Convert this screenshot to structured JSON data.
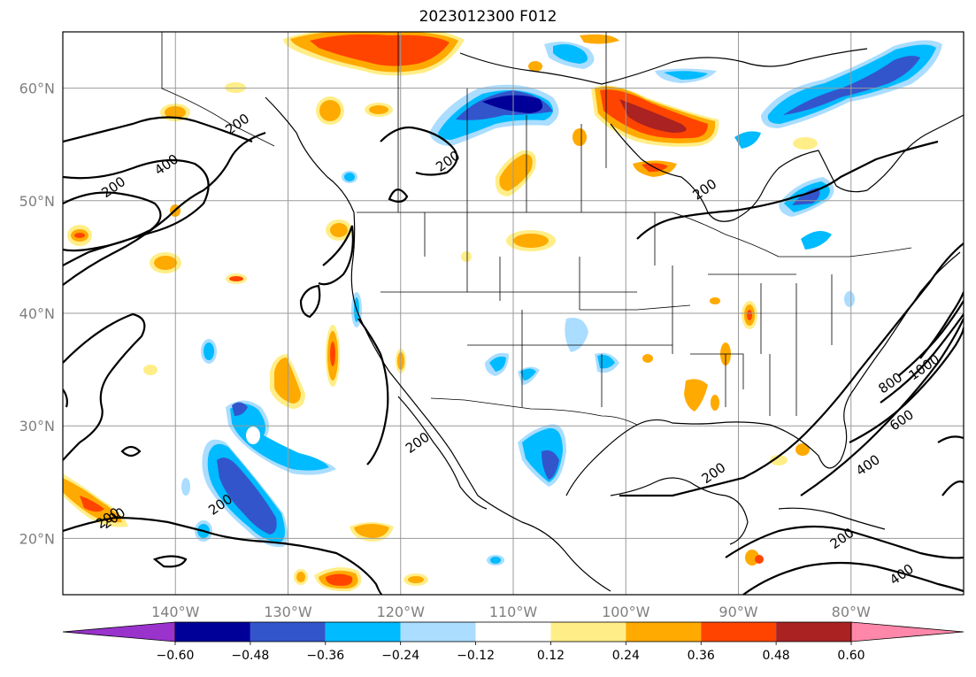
{
  "title": "2023012300 F012",
  "map": {
    "projection": "lat-lon",
    "lon_range": [
      -150,
      -70
    ],
    "lat_range": [
      15,
      65
    ],
    "lon_ticks": [
      {
        "value": -140,
        "label": "140°W"
      },
      {
        "value": -130,
        "label": "130°W"
      },
      {
        "value": -120,
        "label": "120°W"
      },
      {
        "value": -110,
        "label": "110°W"
      },
      {
        "value": -100,
        "label": "100°W"
      },
      {
        "value": -90,
        "label": "90°W"
      },
      {
        "value": -80,
        "label": "80°W"
      }
    ],
    "lat_ticks": [
      {
        "value": 20,
        "label": "20°N"
      },
      {
        "value": 30,
        "label": "30°N"
      },
      {
        "value": 40,
        "label": "40°N"
      },
      {
        "value": 50,
        "label": "50°N"
      },
      {
        "value": 60,
        "label": "60°N"
      }
    ],
    "grid": true,
    "contour_labels": [
      {
        "text": "200",
        "lon": -145.5,
        "lat": 51.2
      },
      {
        "text": "400",
        "lon": -140.8,
        "lat": 53.2
      },
      {
        "text": "200",
        "lon": -146.0,
        "lat": 21.8
      },
      {
        "text": "200",
        "lon": -134.5,
        "lat": 56.8
      },
      {
        "text": "200",
        "lon": -115.8,
        "lat": 53.5
      },
      {
        "text": "200",
        "lon": -118.5,
        "lat": 28.5
      },
      {
        "text": "200",
        "lon": -145.5,
        "lat": 21.8
      },
      {
        "text": "200",
        "lon": -136.0,
        "lat": 23.0
      },
      {
        "text": "200",
        "lon": -93.0,
        "lat": 51.0
      },
      {
        "text": "200",
        "lon": -92.2,
        "lat": 25.8
      },
      {
        "text": "400",
        "lon": -78.5,
        "lat": 26.5
      },
      {
        "text": "600",
        "lon": -75.5,
        "lat": 30.5
      },
      {
        "text": "800",
        "lon": -76.5,
        "lat": 33.8
      },
      {
        "text": "1000",
        "lon": -73.5,
        "lat": 35.2
      },
      {
        "text": "200",
        "lon": -80.8,
        "lat": 20.0
      },
      {
        "text": "400",
        "lon": -75.5,
        "lat": 16.8
      }
    ]
  },
  "colorbar": {
    "levels": [
      "−0.60",
      "−0.48",
      "−0.36",
      "−0.24",
      "−0.12",
      "0.12",
      "0.24",
      "0.36",
      "0.48",
      "0.60"
    ],
    "colors": [
      "#9933cc",
      "#000099",
      "#3355cc",
      "#00bbff",
      "#aaddff",
      "#ffffff",
      "#ffee88",
      "#ffaa00",
      "#ff4400",
      "#aa2222",
      "#ff88aa"
    ],
    "extend": "both"
  }
}
